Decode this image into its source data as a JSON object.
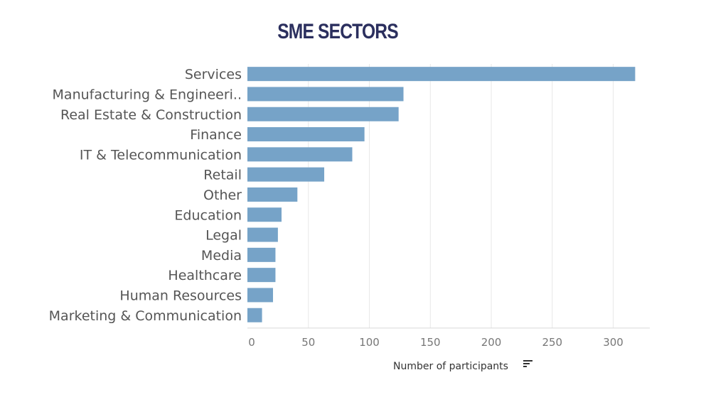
{
  "title": "SME SECTORS",
  "colors": {
    "bar": "#76a3c8",
    "title": "#2b2f5e",
    "grid": "#e8e8e8",
    "axis": "#d9d9d9",
    "sort_icon": "#333333"
  },
  "chart_data": {
    "type": "bar",
    "orientation": "horizontal",
    "title": "SME SECTORS",
    "xlabel": "Number of participants",
    "ylabel": "",
    "categories": [
      "Services",
      "Manufacturing & Engineeri..",
      "Real Estate & Construction",
      "Finance",
      "IT & Telecommunication",
      "Retail",
      "Other",
      "Education",
      "Legal",
      "Media",
      "Healthcare",
      "Human Resources",
      "Marketing & Communication"
    ],
    "values": [
      318,
      128,
      124,
      96,
      86,
      63,
      41,
      28,
      25,
      23,
      23,
      21,
      12
    ],
    "xlim": [
      0,
      330
    ],
    "xticks": [
      0,
      50,
      100,
      150,
      200,
      250,
      300
    ],
    "grid": true,
    "sort_icon": "sort-descending-icon"
  }
}
